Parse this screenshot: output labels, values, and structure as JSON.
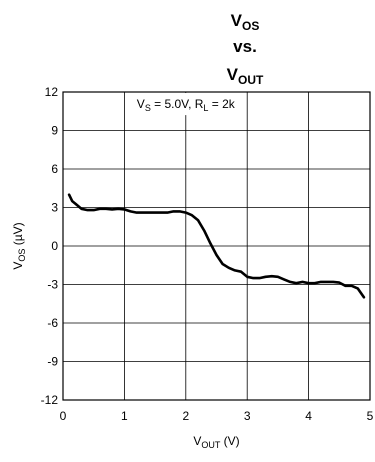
{
  "chart_data": {
    "type": "line",
    "title": {
      "line1_main": "V",
      "line1_sub": "OS",
      "line2": "vs.",
      "line3_main": "V",
      "line3_sub": "OUT"
    },
    "xlabel": {
      "main": "V",
      "sub": "OUT",
      "suffix": " (V)"
    },
    "ylabel": {
      "main": "V",
      "sub": "OS",
      "suffix": " (µV)"
    },
    "annotation": {
      "p1": "V",
      "s1": "S",
      "p2": " = 5.0V, R",
      "s2": "L",
      "p3": " = 2k"
    },
    "xlim": [
      0,
      5
    ],
    "ylim": [
      -12,
      12
    ],
    "xticks": [
      "0",
      "1",
      "2",
      "3",
      "4",
      "5"
    ],
    "yticks": [
      "12",
      "9",
      "6",
      "3",
      "0",
      "-3",
      "-6",
      "-9",
      "-12"
    ],
    "grid": true,
    "series": [
      {
        "color": "#000000",
        "x": [
          0.1,
          0.15,
          0.2,
          0.3,
          0.4,
          0.5,
          0.6,
          0.7,
          0.8,
          0.9,
          1.0,
          1.1,
          1.2,
          1.3,
          1.4,
          1.5,
          1.6,
          1.7,
          1.8,
          1.9,
          2.0,
          2.1,
          2.2,
          2.3,
          2.4,
          2.5,
          2.6,
          2.7,
          2.8,
          2.9,
          3.0,
          3.1,
          3.2,
          3.3,
          3.4,
          3.5,
          3.6,
          3.7,
          3.8,
          3.9,
          4.0,
          4.1,
          4.2,
          4.3,
          4.4,
          4.5,
          4.6,
          4.7,
          4.8,
          4.9
        ],
        "y": [
          4.0,
          3.5,
          3.3,
          2.9,
          2.8,
          2.8,
          2.9,
          2.9,
          2.85,
          2.9,
          2.85,
          2.7,
          2.6,
          2.6,
          2.6,
          2.6,
          2.6,
          2.6,
          2.7,
          2.7,
          2.6,
          2.4,
          2.0,
          1.2,
          0.2,
          -0.7,
          -1.4,
          -1.7,
          -1.9,
          -2.0,
          -2.4,
          -2.5,
          -2.5,
          -2.4,
          -2.35,
          -2.4,
          -2.6,
          -2.8,
          -2.9,
          -2.8,
          -2.9,
          -2.9,
          -2.8,
          -2.8,
          -2.8,
          -2.85,
          -3.1,
          -3.1,
          -3.3,
          -4.0
        ]
      }
    ]
  }
}
